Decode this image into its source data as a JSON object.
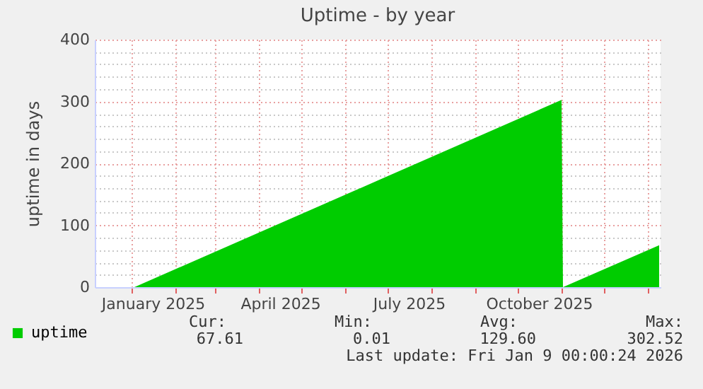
{
  "chart_data": {
    "type": "area",
    "title": "Uptime - by year",
    "ylabel": "uptime in days",
    "x": [
      "2025-01-03",
      "2025-11-01",
      "2025-11-02",
      "2026-01-09"
    ],
    "series": [
      {
        "name": "uptime",
        "color": "#00cc00",
        "values": [
          0,
          302.52,
          0.01,
          67.61
        ]
      }
    ],
    "xlim": [
      "2024-12-06",
      "2026-01-10"
    ],
    "xticks": [
      {
        "value": "2025-01-01",
        "label": null
      },
      {
        "value": "2025-02-01",
        "label": null
      },
      {
        "value": "2025-03-01",
        "label": null
      },
      {
        "value": "2025-04-01",
        "label": null
      },
      {
        "value": "2025-05-01",
        "label": null
      },
      {
        "value": "2025-06-01",
        "label": null
      },
      {
        "value": "2025-07-01",
        "label": null
      },
      {
        "value": "2025-08-01",
        "label": null
      },
      {
        "value": "2025-09-01",
        "label": null
      },
      {
        "value": "2025-10-01",
        "label": null
      },
      {
        "value": "2025-11-01",
        "label": null
      },
      {
        "value": "2025-12-01",
        "label": null
      },
      {
        "value": "2026-01-01",
        "label": null
      },
      {
        "value": "2025-01-16",
        "label": "January 2025"
      },
      {
        "value": "2025-04-16",
        "label": "April 2025"
      },
      {
        "value": "2025-07-16",
        "label": "July 2025"
      },
      {
        "value": "2025-10-16",
        "label": "October 2025"
      }
    ],
    "ylim": [
      0,
      400
    ],
    "yticks": [
      0,
      {
        "value": 20,
        "label": null
      },
      {
        "value": 40,
        "label": null
      },
      {
        "value": 60,
        "label": null
      },
      {
        "value": 80,
        "label": null
      },
      100,
      {
        "value": 120,
        "label": null
      },
      {
        "value": 140,
        "label": null
      },
      {
        "value": 160,
        "label": null
      },
      {
        "value": 180,
        "label": null
      },
      200,
      {
        "value": 220,
        "label": null
      },
      {
        "value": 240,
        "label": null
      },
      {
        "value": 260,
        "label": null
      },
      {
        "value": 280,
        "label": null
      },
      300,
      {
        "value": 320,
        "label": null
      },
      {
        "value": 340,
        "label": null
      },
      {
        "value": 360,
        "label": null
      },
      {
        "value": 380,
        "label": null
      },
      400
    ],
    "grid": true,
    "legend": "bottom left",
    "annotations": [
      "Cur:",
      "Min:",
      "Avg:",
      "Max:",
      "67.61",
      "0.01",
      "129.60",
      "302.52",
      "Last update: Fri Jan  9 00:00:24 2026"
    ]
  }
}
